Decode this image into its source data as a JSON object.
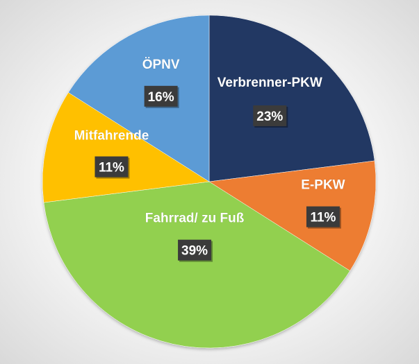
{
  "chart_data": {
    "type": "pie",
    "title": "",
    "categories": [
      "Verbrenner-PKW",
      "E-PKW",
      "Fahrrad/ zu Fuß",
      "Mitfahrende",
      "ÖPNV"
    ],
    "values": [
      23,
      11,
      39,
      11,
      16
    ],
    "value_labels": [
      "23%",
      "11%",
      "39%",
      "11%",
      "16%"
    ],
    "colors": [
      "#203864",
      "#ED7D31",
      "#92D050",
      "#FFC000",
      "#5B9BD5"
    ],
    "label_colors": [
      "#ffffff",
      "#ffffff",
      "#ffffff",
      "#ffffff",
      "#ffffff"
    ],
    "start_angle_deg": 0,
    "direction": "clockwise",
    "legend": "none"
  }
}
